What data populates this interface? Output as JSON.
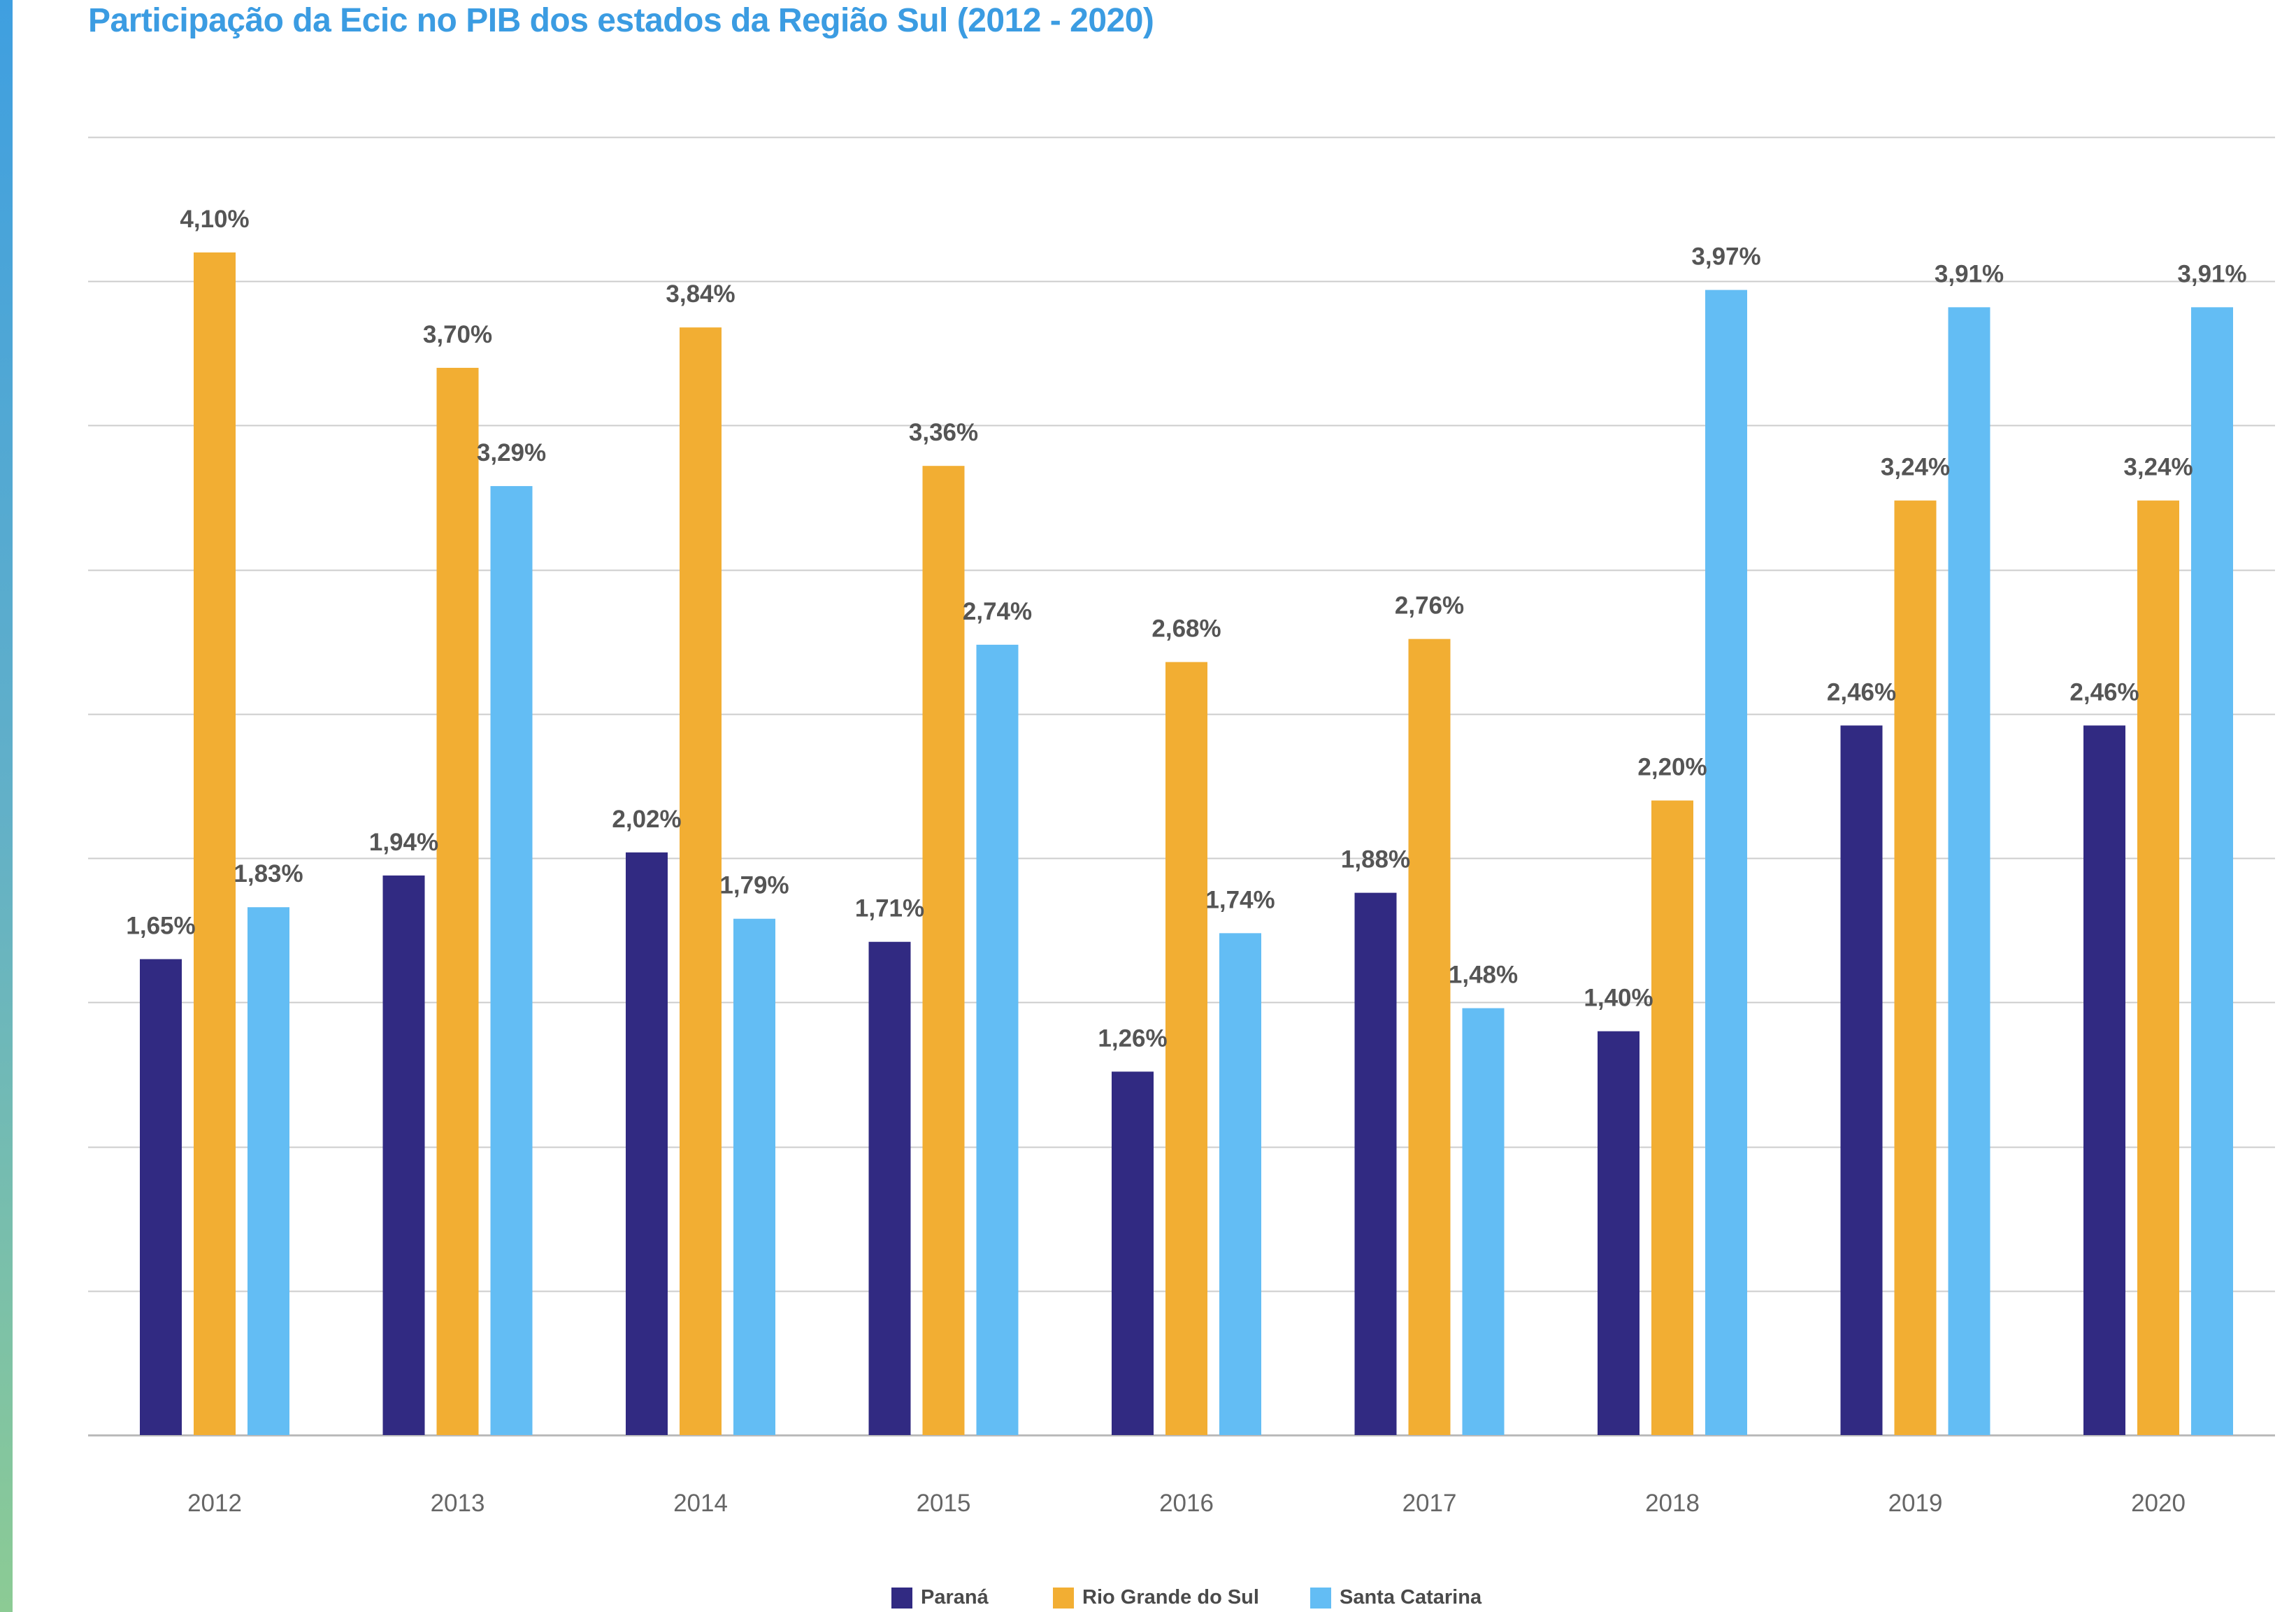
{
  "title": "Participação da Ecic no PIB dos estados da Região Sul (2012 - 2020)",
  "chart_data": {
    "type": "bar",
    "title": "Participação da Ecic no PIB dos estados da Região Sul (2012 - 2020)",
    "xlabel": "",
    "ylabel": "",
    "ylim": [
      0,
      4.5
    ],
    "grid": true,
    "legend_position": "bottom",
    "categories": [
      "2012",
      "2013",
      "2014",
      "2015",
      "2016",
      "2017",
      "2018",
      "2019",
      "2020"
    ],
    "series": [
      {
        "name": "Paraná",
        "color": "#312a82",
        "values": [
          1.65,
          1.94,
          2.02,
          1.71,
          1.26,
          1.88,
          1.4,
          2.46,
          2.46
        ],
        "labels": [
          "1,65%",
          "1,94%",
          "2,02%",
          "1,71%",
          "1,26%",
          "1,88%",
          "1,40%",
          "2,46%",
          "2,46%"
        ]
      },
      {
        "name": "Rio Grande do Sul",
        "color": "#f2ae33",
        "values": [
          4.1,
          3.7,
          3.84,
          3.36,
          2.68,
          2.76,
          2.2,
          3.24,
          3.24
        ],
        "labels": [
          "4,10%",
          "3,70%",
          "3,84%",
          "3,36%",
          "2,68%",
          "2,76%",
          "2,20%",
          "3,24%",
          "3,24%"
        ]
      },
      {
        "name": "Santa Catarina",
        "color": "#63bdf4",
        "values": [
          1.83,
          3.29,
          1.79,
          2.74,
          1.74,
          1.48,
          3.97,
          3.91,
          3.91
        ],
        "labels": [
          "1,83%",
          "3,29%",
          "1,79%",
          "2,74%",
          "1,74%",
          "1,48%",
          "3,97%",
          "3,91%",
          "3,91%"
        ]
      }
    ]
  },
  "colors": {
    "title": "#3b9ce2",
    "gridline": "#cccccc",
    "data_label": "#555555",
    "tick_label": "#666666"
  }
}
